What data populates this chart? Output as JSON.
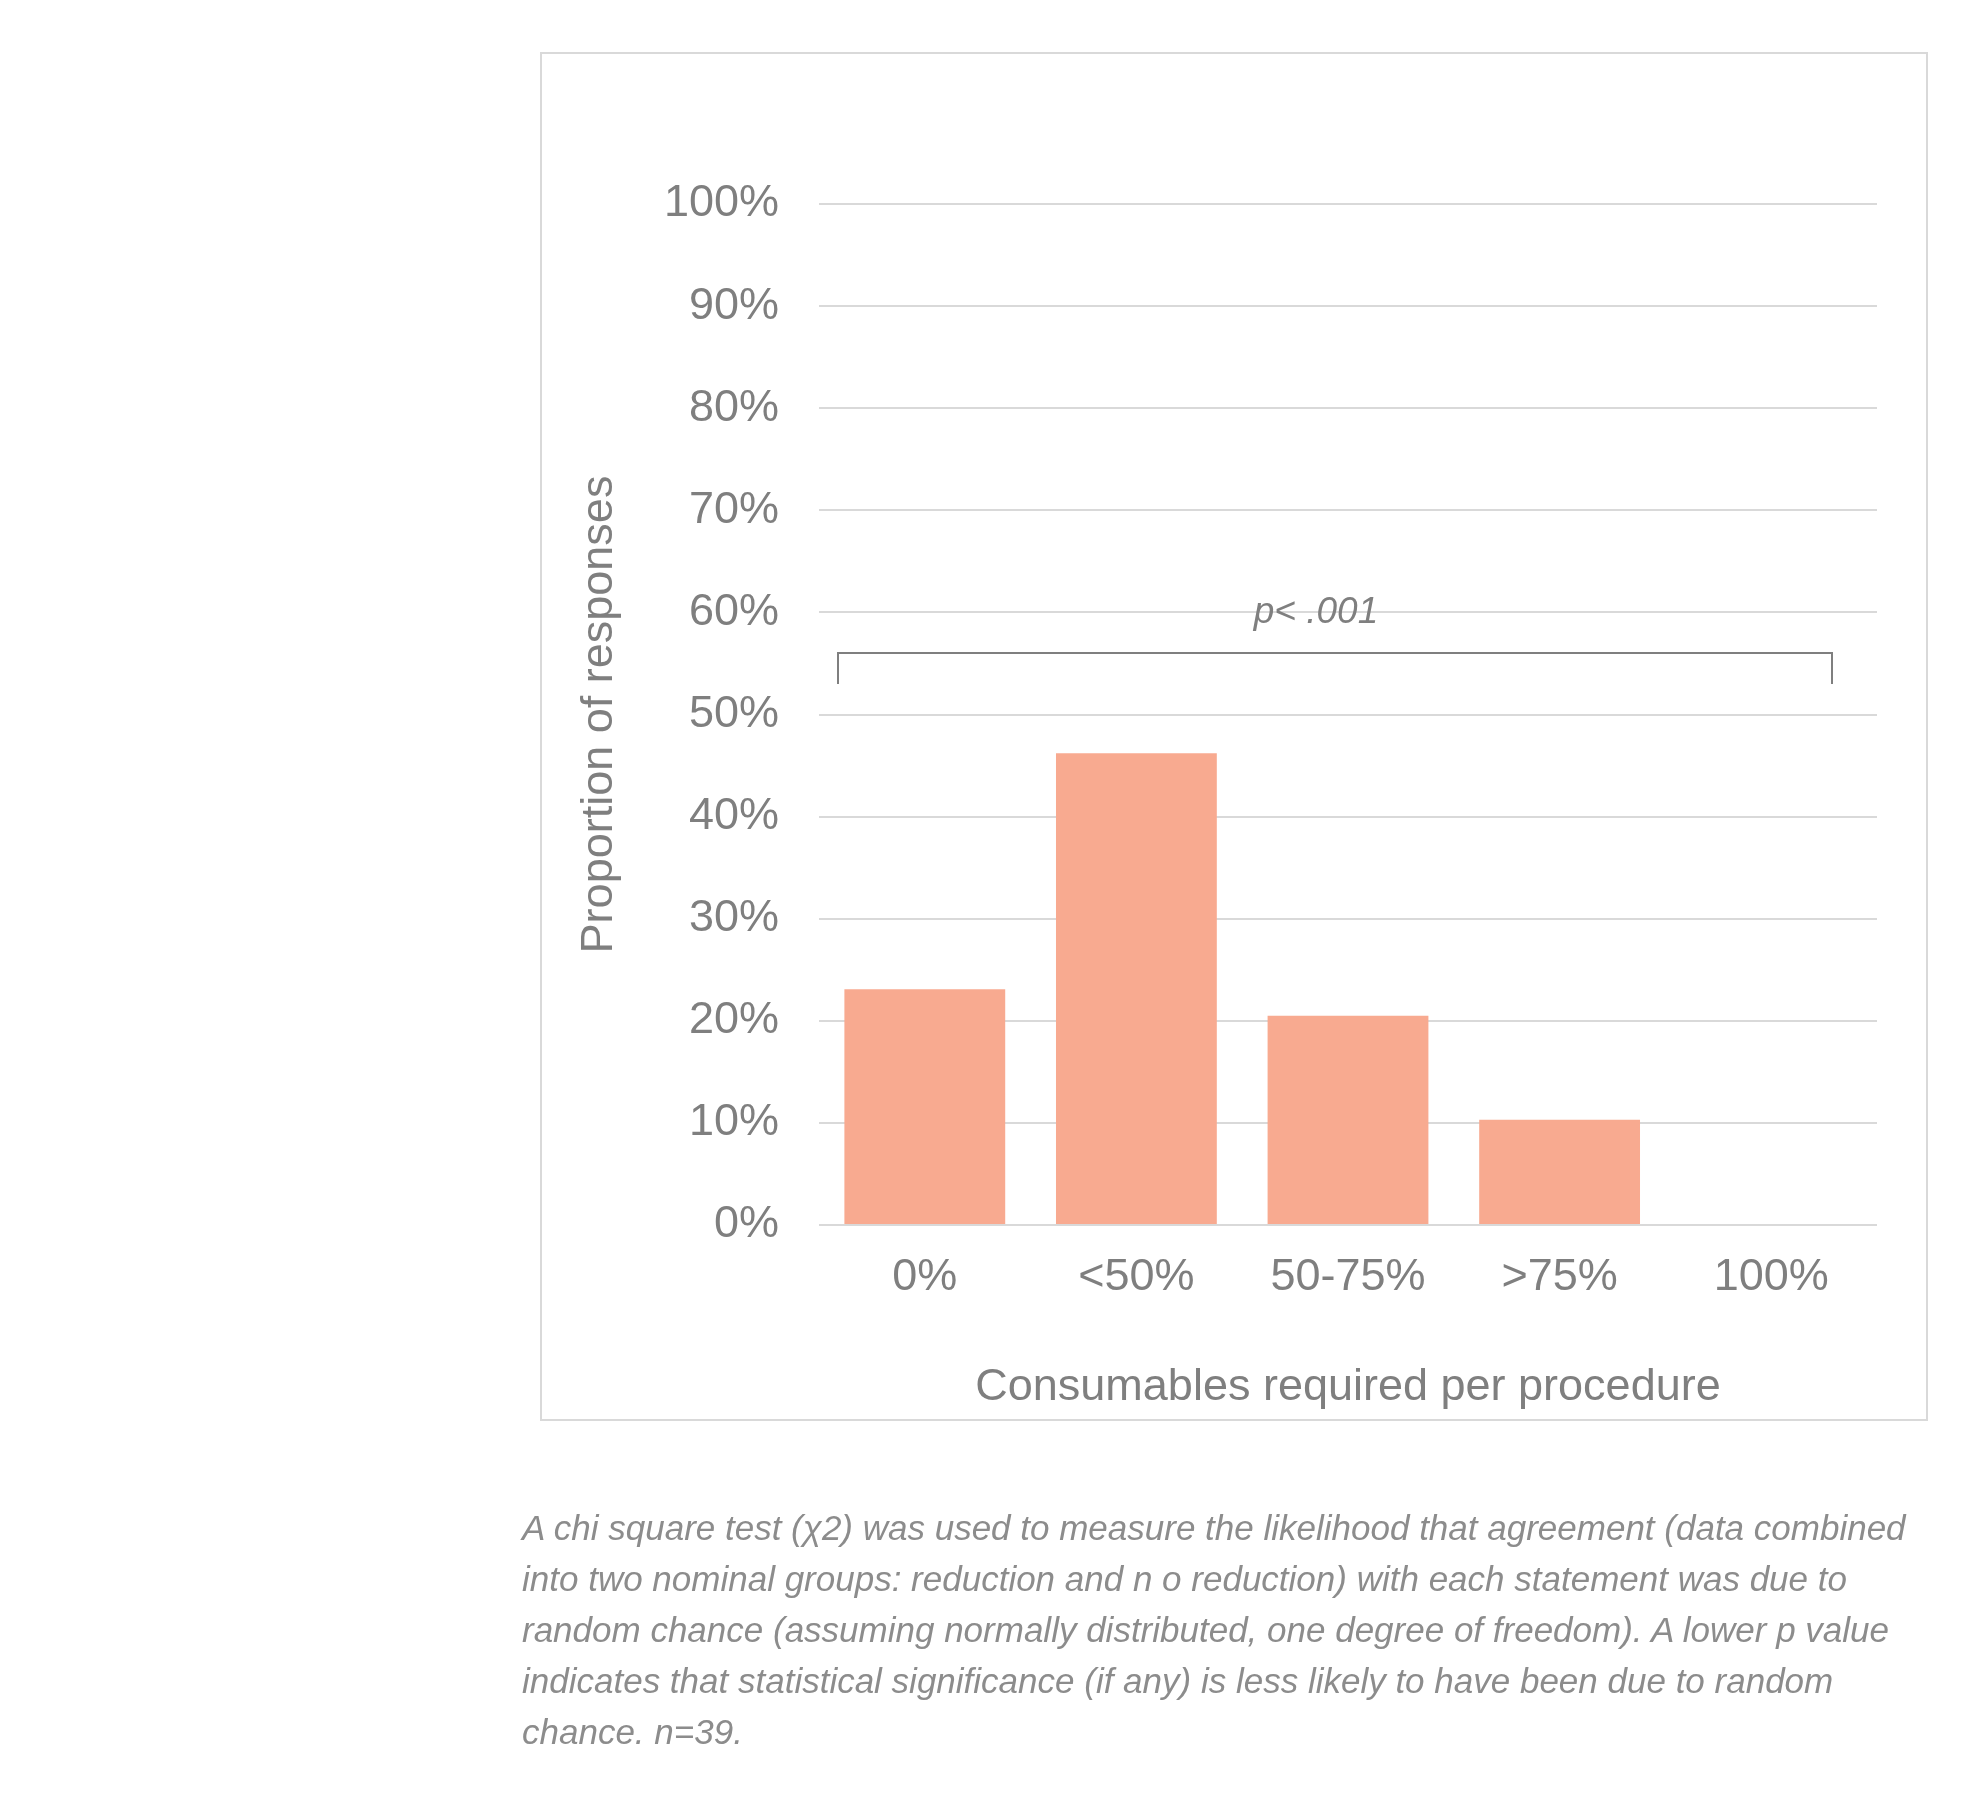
{
  "chart_data": {
    "type": "bar",
    "xlabel": "Consumables required per procedure",
    "ylabel": "Proportion of responses",
    "categories": [
      "0%",
      "<50%",
      "50-75%",
      ">75%",
      "100%"
    ],
    "values": [
      23.1,
      46.2,
      20.5,
      10.3,
      0
    ],
    "color": "#f8aa90",
    "ylim": [
      0,
      100
    ],
    "yticks": [
      {
        "value": 0,
        "label": "0%"
      },
      {
        "value": 10,
        "label": "10%"
      },
      {
        "value": 20,
        "label": "20%"
      },
      {
        "value": 30,
        "label": "30%"
      },
      {
        "value": 40,
        "label": "40%"
      },
      {
        "value": 50,
        "label": "50%"
      },
      {
        "value": 60,
        "label": "60%"
      },
      {
        "value": 70,
        "label": "70%"
      },
      {
        "value": 80,
        "label": "80%"
      },
      {
        "value": 90,
        "label": "90%"
      },
      {
        "value": 100,
        "label": "100%"
      }
    ],
    "grid": "y",
    "legend": false,
    "annotations": [
      "p< .001",
      "A chi square test (χ2) was used to measure the likelihood that agreement (data combined into two nominal groups: reduction and n o reduction) with each statement was due to random chance (assuming normally distributed, one degree of freedom). A lower p value indicates that statistical significance (if any) is less likely to have been due to random chance. n=39."
    ]
  }
}
